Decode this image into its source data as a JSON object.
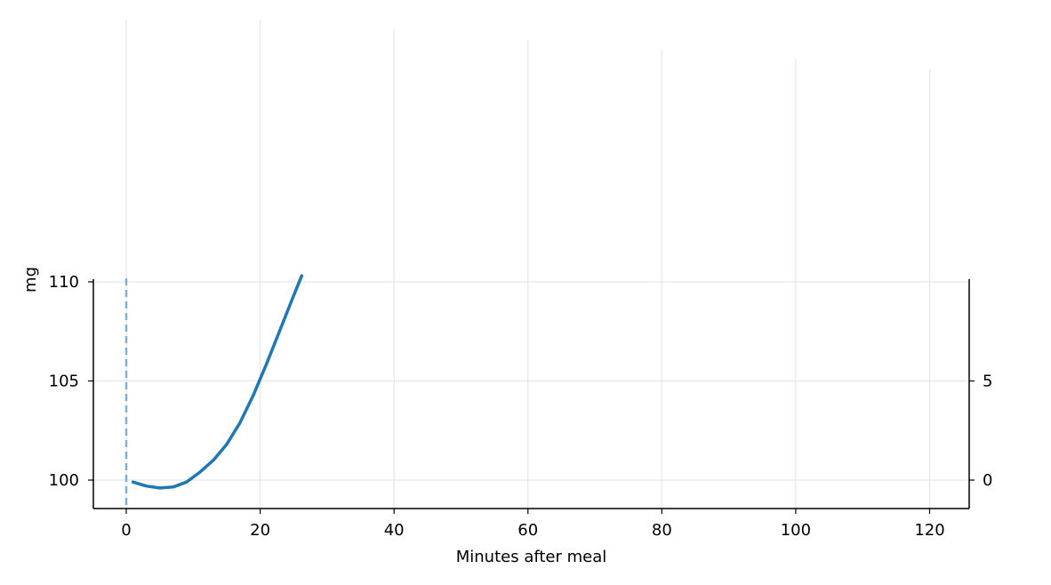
{
  "chart_data": {
    "type": "line",
    "xlabel": "Minutes after meal",
    "ylabel": "mg",
    "xlim": [
      -5,
      126
    ],
    "ylim": [
      98.5,
      110
    ],
    "x_ticks": [
      0,
      20,
      40,
      60,
      80,
      100,
      120
    ],
    "y_ticks": [
      100,
      105,
      110
    ],
    "y2_ticks": [
      0,
      5
    ],
    "grid": true,
    "meal_marker_x": 0,
    "series": [
      {
        "color": "#1f77b4",
        "x": [
          1,
          3,
          5,
          7,
          9,
          11,
          13,
          15,
          17,
          19,
          21,
          23,
          25,
          26.2
        ],
        "y": [
          99.9,
          99.7,
          99.6,
          99.65,
          99.9,
          100.4,
          101.0,
          101.8,
          102.9,
          104.3,
          105.9,
          107.6,
          109.3,
          110.3
        ]
      }
    ]
  }
}
